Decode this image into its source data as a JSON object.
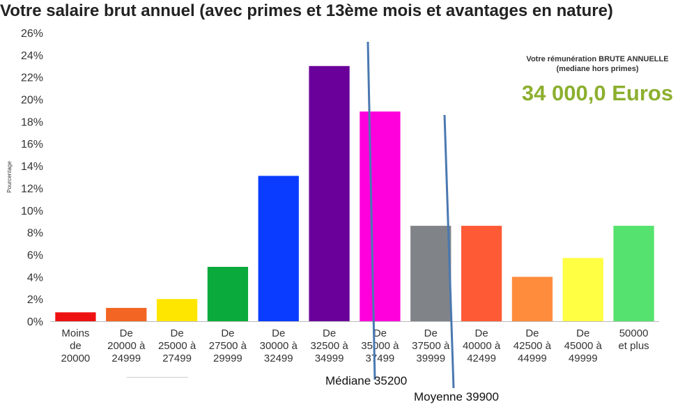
{
  "title": "Votre salaire brut annuel (avec primes et 13ème mois et avantages en nature)",
  "summary": {
    "caption": "Votre rémunération BRUTE ANNUELLE",
    "subcaption": "(mediane hors primes)",
    "value": "34 000,0 Euros",
    "value_color": "#8caf2e"
  },
  "chart_data": {
    "type": "bar",
    "title": "Votre salaire brut annuel (avec primes et 13ème mois et avantages en nature)",
    "xlabel": "",
    "ylabel": "Pourcentage",
    "ylim": [
      0,
      26
    ],
    "yticks": [
      "0%",
      "2%",
      "4%",
      "6%",
      "8%",
      "10%",
      "12%",
      "14%",
      "16%",
      "18%",
      "20%",
      "22%",
      "24%",
      "26%"
    ],
    "ytick_values": [
      0,
      2,
      4,
      6,
      8,
      10,
      12,
      14,
      16,
      18,
      20,
      22,
      24,
      26
    ],
    "grid": false,
    "categories": [
      [
        "Moins",
        "de",
        "20000"
      ],
      [
        "De",
        "20000 à",
        "24999"
      ],
      [
        "De",
        "25000 à",
        "27499"
      ],
      [
        "De",
        "27500 à",
        "29999"
      ],
      [
        "De",
        "30000 à",
        "32499"
      ],
      [
        "De",
        "32500 à",
        "34999"
      ],
      [
        "De",
        "35000 à",
        "37499"
      ],
      [
        "De",
        "37500 à",
        "39999"
      ],
      [
        "De",
        "40000 à",
        "42499"
      ],
      [
        "De",
        "42500 à",
        "44999"
      ],
      [
        "De",
        "45000 à",
        "49999"
      ],
      [
        "50000",
        "et plus"
      ]
    ],
    "values": [
      0.8,
      1.2,
      2.0,
      4.9,
      13.1,
      23.0,
      18.9,
      8.6,
      8.6,
      4.0,
      5.7,
      8.6
    ],
    "colors": [
      "#ee1111",
      "#f26522",
      "#ffe600",
      "#0aaa3c",
      "#0a3cff",
      "#6a0099",
      "#ff00dd",
      "#808488",
      "#ff5a36",
      "#ff8c3c",
      "#ffff44",
      "#55e26e"
    ],
    "annotations": [
      {
        "label": "Médiane 35200",
        "value": 35200,
        "line_color": "#4a78b0"
      },
      {
        "label": "Moyenne 39900",
        "value": 39900,
        "line_color": "#4a78b0"
      }
    ]
  }
}
